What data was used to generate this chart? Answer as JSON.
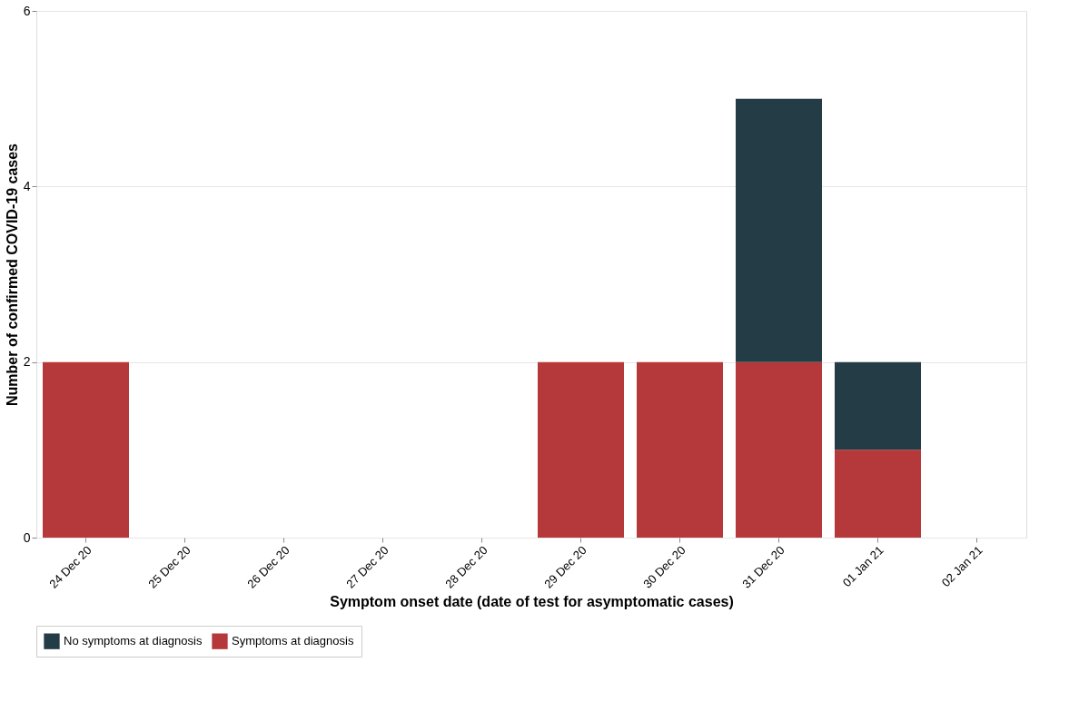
{
  "chart_data": {
    "type": "bar",
    "stacked": true,
    "xlabel": "Symptom onset date (date of test for asymptomatic cases)",
    "ylabel": "Number of confirmed COVID-19 cases",
    "categories": [
      "24 Dec 20",
      "25 Dec 20",
      "26 Dec 20",
      "27 Dec 20",
      "28 Dec 20",
      "29 Dec 20",
      "30 Dec 20",
      "31 Dec 20",
      "01 Jan 21",
      "02 Jan 21"
    ],
    "series": [
      {
        "name": "Symptoms at diagnosis",
        "color": "#b5383a",
        "values": [
          2,
          0,
          0,
          0,
          0,
          2,
          2,
          2,
          1,
          0
        ]
      },
      {
        "name": "No symptoms at diagnosis",
        "color": "#243c45",
        "values": [
          0,
          0,
          0,
          0,
          0,
          0,
          0,
          3,
          1,
          0
        ]
      }
    ],
    "ylim": [
      0,
      6
    ],
    "yticks": [
      0,
      2,
      4,
      6
    ],
    "grid": "y",
    "legend": "bottom"
  }
}
